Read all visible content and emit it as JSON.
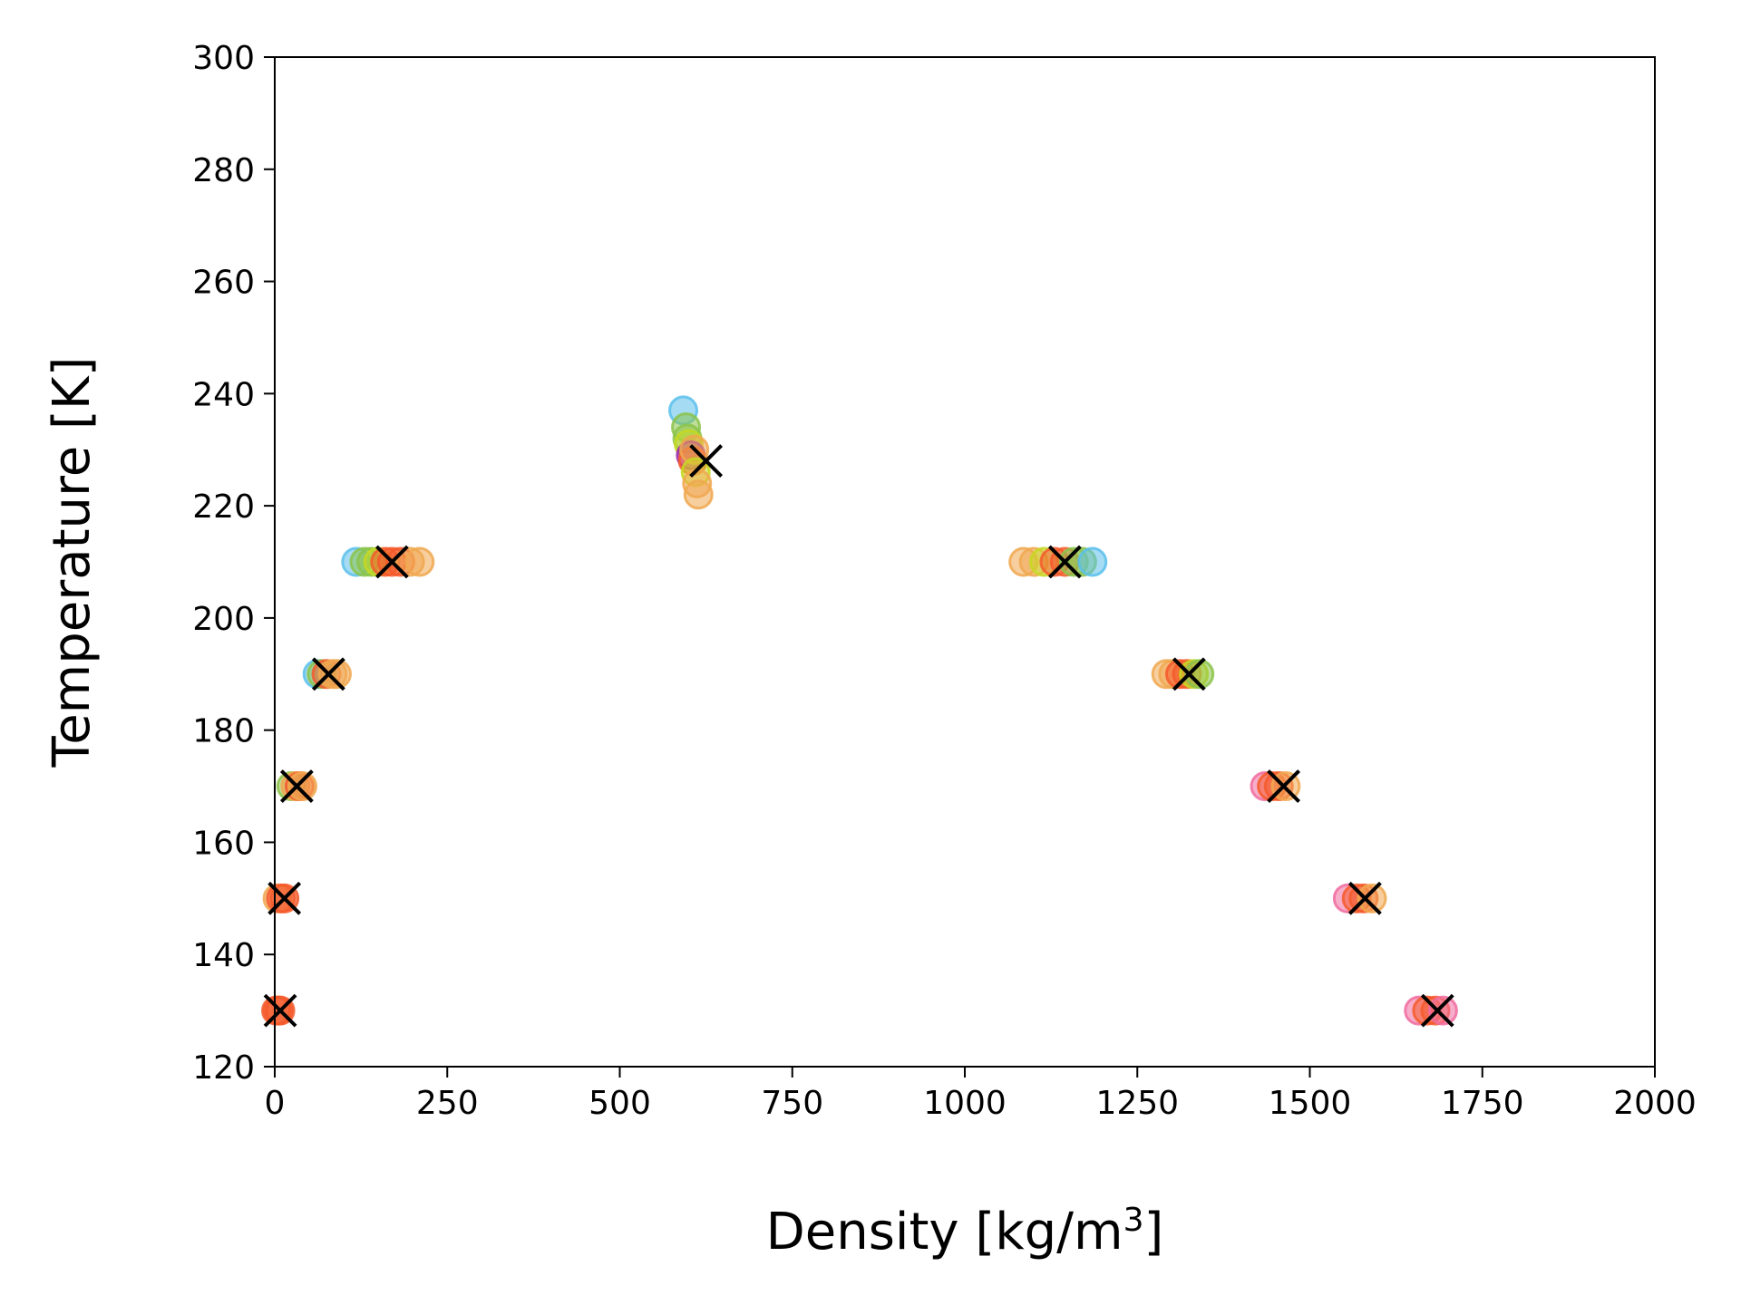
{
  "chart_data": {
    "type": "scatter",
    "title": "",
    "xlabel": "Density [kg/m",
    "xlabel_sup": "3",
    "xlabel_suffix": "]",
    "ylabel": "Temperature [K]",
    "xlim": [
      0,
      2000
    ],
    "ylim": [
      120,
      300
    ],
    "xticks": [
      0,
      250,
      500,
      750,
      1000,
      1250,
      1500,
      1750,
      2000
    ],
    "yticks": [
      120,
      140,
      160,
      180,
      200,
      220,
      240,
      260,
      280,
      300
    ],
    "grid": false,
    "legend": "none",
    "colors": {
      "blue": "#5bc0eb",
      "green": "#8bc34a",
      "yellow": "#c6d820",
      "orange": "#f0a850",
      "pink": "#f06ca0",
      "purple": "#9c27b0",
      "red": "#f45b2c",
      "marker_x": "#000000"
    },
    "simulation_points": [
      {
        "x": 2,
        "y": 130,
        "c": "red"
      },
      {
        "x": 5,
        "y": 130,
        "c": "red"
      },
      {
        "x": 8,
        "y": 130,
        "c": "red"
      },
      {
        "x": 4,
        "y": 150,
        "c": "orange"
      },
      {
        "x": 9,
        "y": 150,
        "c": "red"
      },
      {
        "x": 14,
        "y": 150,
        "c": "red"
      },
      {
        "x": 24,
        "y": 170,
        "c": "green"
      },
      {
        "x": 30,
        "y": 170,
        "c": "orange"
      },
      {
        "x": 36,
        "y": 170,
        "c": "red"
      },
      {
        "x": 40,
        "y": 170,
        "c": "orange"
      },
      {
        "x": 62,
        "y": 190,
        "c": "blue"
      },
      {
        "x": 68,
        "y": 190,
        "c": "green"
      },
      {
        "x": 75,
        "y": 190,
        "c": "red"
      },
      {
        "x": 84,
        "y": 190,
        "c": "orange"
      },
      {
        "x": 90,
        "y": 190,
        "c": "orange"
      },
      {
        "x": 118,
        "y": 210,
        "c": "blue"
      },
      {
        "x": 130,
        "y": 210,
        "c": "green"
      },
      {
        "x": 140,
        "y": 210,
        "c": "green"
      },
      {
        "x": 150,
        "y": 210,
        "c": "yellow"
      },
      {
        "x": 160,
        "y": 210,
        "c": "red"
      },
      {
        "x": 170,
        "y": 210,
        "c": "red"
      },
      {
        "x": 182,
        "y": 210,
        "c": "red"
      },
      {
        "x": 196,
        "y": 210,
        "c": "orange"
      },
      {
        "x": 210,
        "y": 210,
        "c": "orange"
      },
      {
        "x": 592,
        "y": 237,
        "c": "blue"
      },
      {
        "x": 596,
        "y": 234,
        "c": "green"
      },
      {
        "x": 598,
        "y": 232,
        "c": "green"
      },
      {
        "x": 600,
        "y": 231,
        "c": "yellow"
      },
      {
        "x": 603,
        "y": 229,
        "c": "purple"
      },
      {
        "x": 606,
        "y": 228,
        "c": "red"
      },
      {
        "x": 608,
        "y": 230,
        "c": "orange"
      },
      {
        "x": 610,
        "y": 226,
        "c": "yellow"
      },
      {
        "x": 612,
        "y": 224,
        "c": "orange"
      },
      {
        "x": 614,
        "y": 222,
        "c": "orange"
      },
      {
        "x": 1085,
        "y": 210,
        "c": "orange"
      },
      {
        "x": 1100,
        "y": 210,
        "c": "orange"
      },
      {
        "x": 1115,
        "y": 210,
        "c": "yellow"
      },
      {
        "x": 1130,
        "y": 210,
        "c": "red"
      },
      {
        "x": 1145,
        "y": 210,
        "c": "red"
      },
      {
        "x": 1158,
        "y": 210,
        "c": "green"
      },
      {
        "x": 1170,
        "y": 210,
        "c": "green"
      },
      {
        "x": 1185,
        "y": 210,
        "c": "blue"
      },
      {
        "x": 1292,
        "y": 190,
        "c": "orange"
      },
      {
        "x": 1302,
        "y": 190,
        "c": "orange"
      },
      {
        "x": 1312,
        "y": 190,
        "c": "red"
      },
      {
        "x": 1322,
        "y": 190,
        "c": "red"
      },
      {
        "x": 1332,
        "y": 190,
        "c": "yellow"
      },
      {
        "x": 1340,
        "y": 190,
        "c": "green"
      },
      {
        "x": 1435,
        "y": 170,
        "c": "pink"
      },
      {
        "x": 1445,
        "y": 170,
        "c": "red"
      },
      {
        "x": 1455,
        "y": 170,
        "c": "red"
      },
      {
        "x": 1465,
        "y": 170,
        "c": "orange"
      },
      {
        "x": 1555,
        "y": 150,
        "c": "pink"
      },
      {
        "x": 1568,
        "y": 150,
        "c": "red"
      },
      {
        "x": 1578,
        "y": 150,
        "c": "red"
      },
      {
        "x": 1590,
        "y": 150,
        "c": "orange"
      },
      {
        "x": 1658,
        "y": 130,
        "c": "pink"
      },
      {
        "x": 1670,
        "y": 130,
        "c": "red"
      },
      {
        "x": 1682,
        "y": 130,
        "c": "red"
      },
      {
        "x": 1693,
        "y": 130,
        "c": "pink"
      }
    ],
    "reference_points": [
      {
        "x": 8,
        "y": 130
      },
      {
        "x": 14,
        "y": 150
      },
      {
        "x": 32,
        "y": 170
      },
      {
        "x": 78,
        "y": 190
      },
      {
        "x": 170,
        "y": 210
      },
      {
        "x": 625,
        "y": 228
      },
      {
        "x": 1145,
        "y": 210
      },
      {
        "x": 1325,
        "y": 190
      },
      {
        "x": 1462,
        "y": 170
      },
      {
        "x": 1580,
        "y": 150
      },
      {
        "x": 1685,
        "y": 130
      }
    ]
  }
}
